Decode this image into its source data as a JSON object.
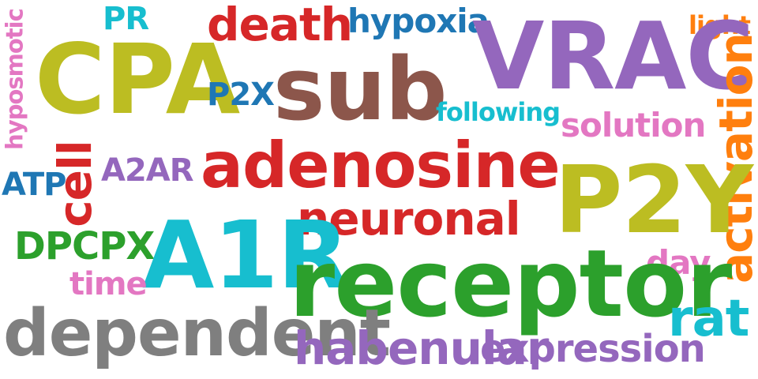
{
  "words": [
    {
      "text": "death",
      "color": "#d62728"
    },
    {
      "text": "PR",
      "color": "#17becf"
    },
    {
      "text": "hypoxia",
      "color": "#1f77b4"
    },
    {
      "text": "light",
      "color": "#ff7f0e"
    },
    {
      "text": "hyposmotic",
      "color": "#e377c2"
    },
    {
      "text": "CPA",
      "color": "#bcbd22"
    },
    {
      "text": "VRAC",
      "color": "#9467bd"
    },
    {
      "text": "sub",
      "color": "#8c564b"
    },
    {
      "text": "P2X",
      "color": "#1f77b4"
    },
    {
      "text": "activation",
      "color": "#ff7f0e"
    },
    {
      "text": "following",
      "color": "#17becf"
    },
    {
      "text": "solution",
      "color": "#e377c2"
    },
    {
      "text": "adenosine",
      "color": "#d62728"
    },
    {
      "text": "cell",
      "color": "#d62728"
    },
    {
      "text": "A2AR",
      "color": "#9467bd"
    },
    {
      "text": "ATP",
      "color": "#1f77b4"
    },
    {
      "text": "P2Y",
      "color": "#bcbd22"
    },
    {
      "text": "neuronal",
      "color": "#d62728"
    },
    {
      "text": "DPCPX",
      "color": "#2ca02c"
    },
    {
      "text": "A1R",
      "color": "#17becf"
    },
    {
      "text": "day",
      "color": "#e377c2"
    },
    {
      "text": "time",
      "color": "#e377c2"
    },
    {
      "text": "receptor",
      "color": "#2ca02c"
    },
    {
      "text": "rat",
      "color": "#17becf"
    },
    {
      "text": "dependent",
      "color": "#7f7f7f"
    },
    {
      "text": "habenular",
      "color": "#9467bd"
    },
    {
      "text": "expression",
      "color": "#9467bd"
    }
  ]
}
